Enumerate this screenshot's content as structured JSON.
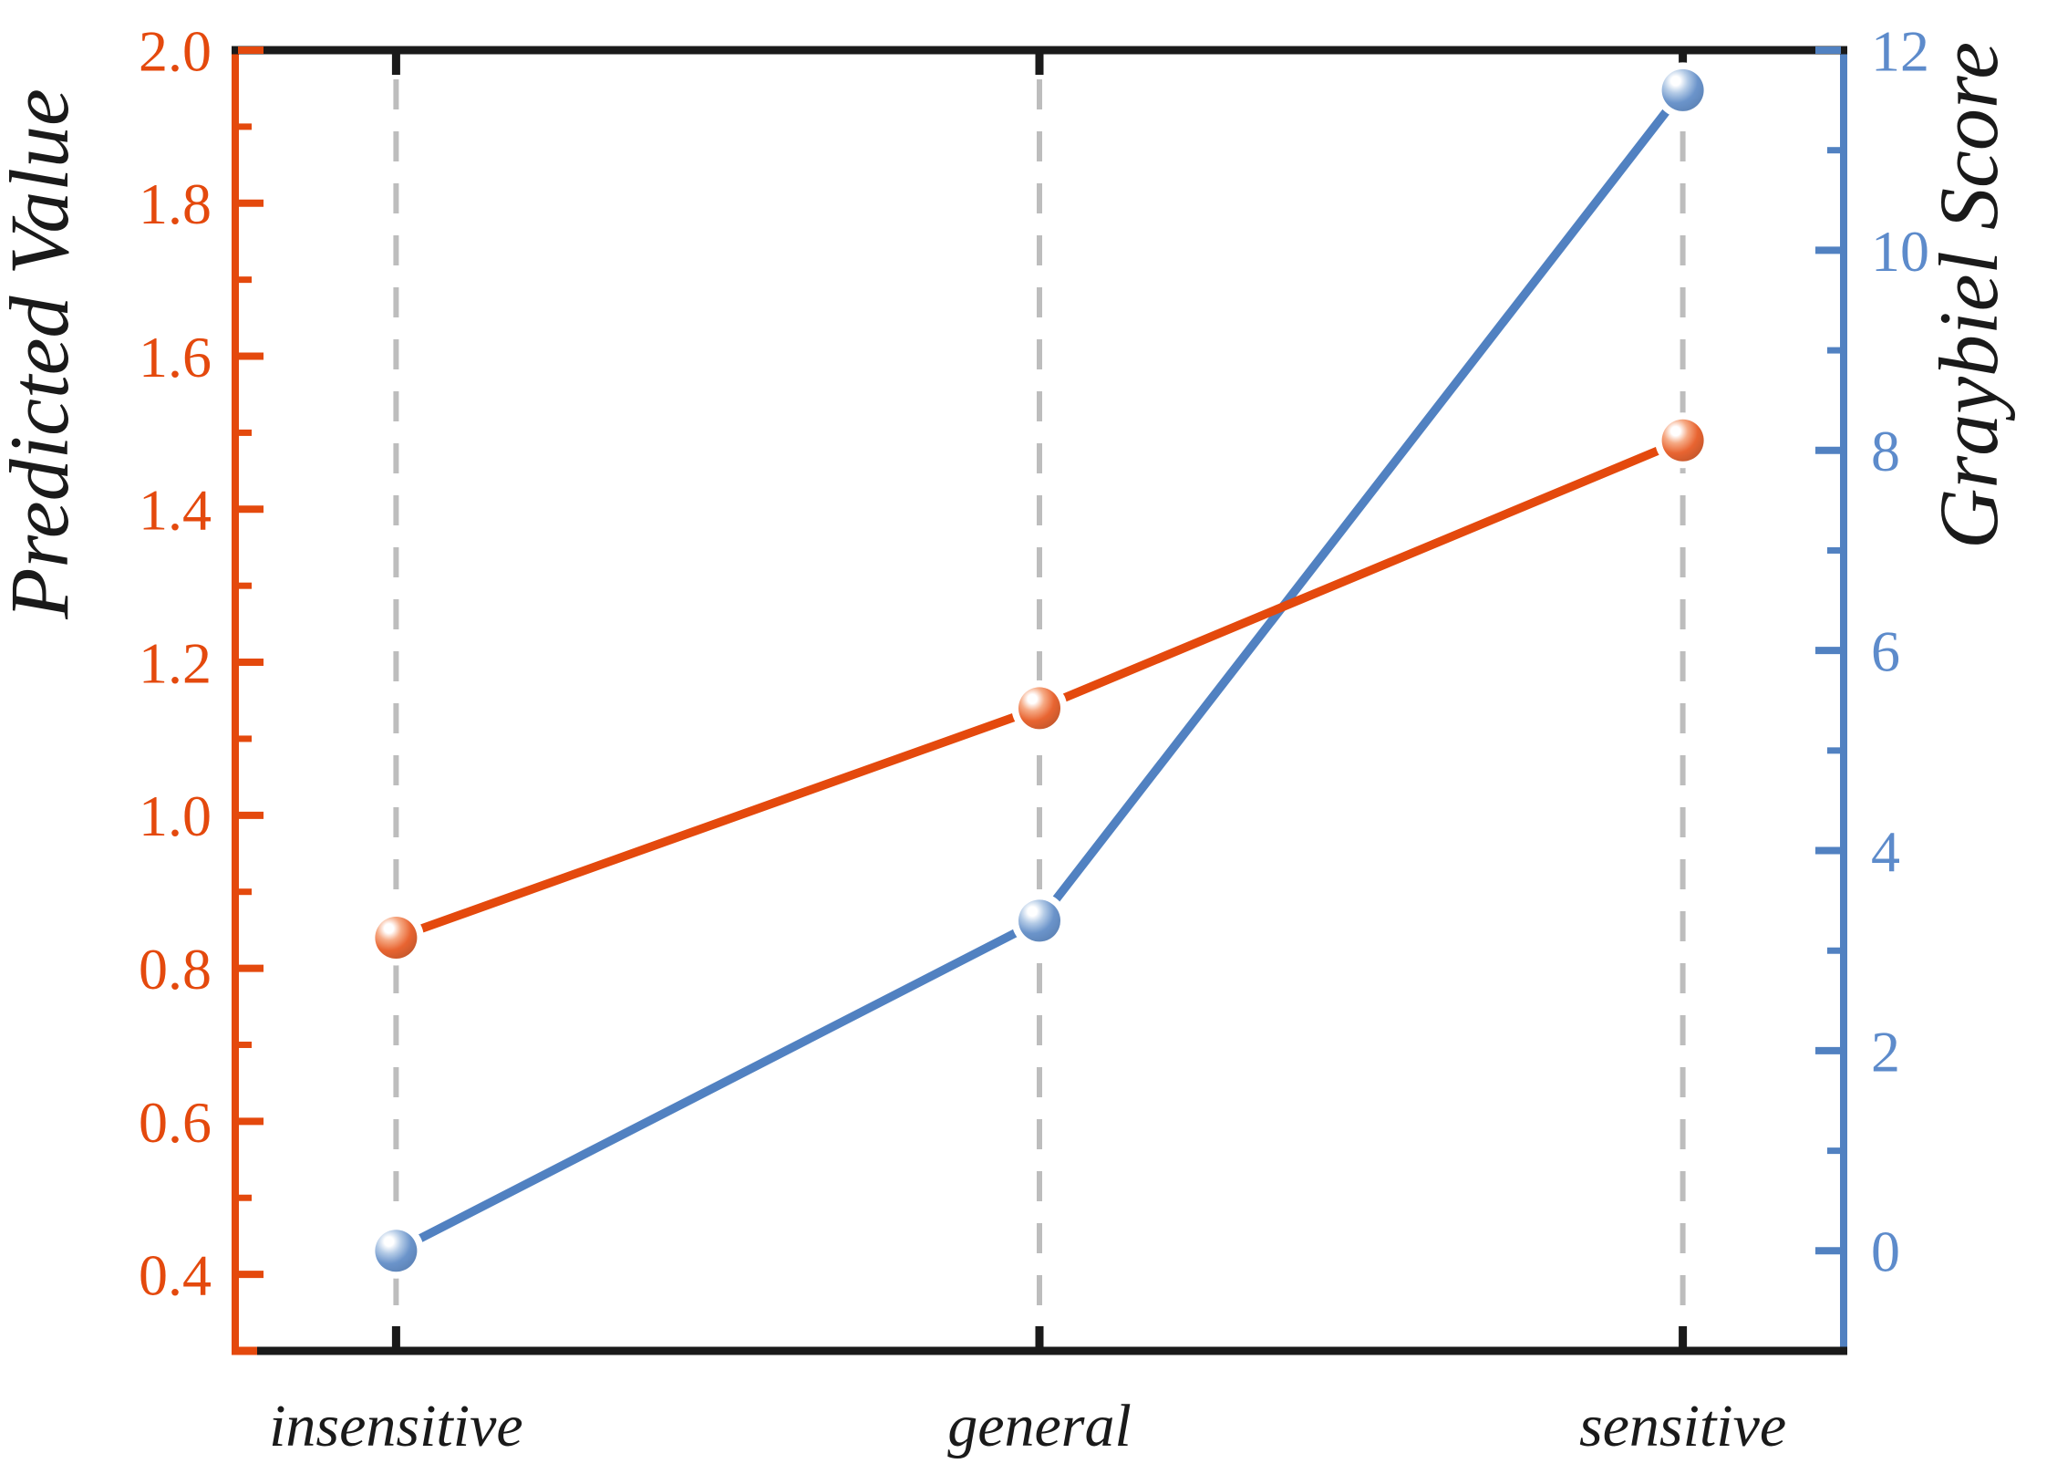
{
  "chart_data": {
    "type": "line",
    "title": "",
    "legend": "none",
    "background": "#FFFFFF",
    "frame_color": "#1A1A1A",
    "categories": [
      "insensitive",
      "general",
      "sensitive"
    ],
    "series": [
      {
        "name": "Predicted Value",
        "axis": "left",
        "values": [
          0.84,
          1.14,
          1.49
        ],
        "color": "#E4490D",
        "color_light": "#F49A6E",
        "color_dark": "#B23605",
        "marker": "sphere"
      },
      {
        "name": "Graybiel Score",
        "axis": "right",
        "values": [
          0.0,
          3.3,
          11.6
        ],
        "color": "#5181C1",
        "color_light": "#A7C2E2",
        "color_dark": "#3C69A5",
        "marker": "sphere"
      }
    ],
    "left_axis": {
      "label": "Predicted Value",
      "min": 0.3,
      "max": 2.0,
      "major_ticks": [
        2.0,
        1.8,
        1.6,
        1.4,
        1.2,
        1.0,
        0.8,
        0.6,
        0.4
      ],
      "major_tick_labels": [
        "2.0",
        "1.8",
        "1.6",
        "1.4",
        "1.2",
        "1.0",
        "0.8",
        "0.6",
        "0.4"
      ],
      "minor_ticks": [
        1.9,
        1.7,
        1.5,
        1.3,
        1.1,
        0.9,
        0.7,
        0.5
      ],
      "color": "#E4490D",
      "tick_label_color": "#E4490D",
      "label_color": "#1A1A1A"
    },
    "right_axis": {
      "label": "Graybiel Score",
      "min": -1,
      "max": 12,
      "major_ticks": [
        12,
        10,
        8,
        6,
        4,
        2,
        0
      ],
      "major_tick_labels": [
        "12",
        "10",
        "8",
        "6",
        "4",
        "2",
        "0"
      ],
      "minor_ticks": [
        11,
        9,
        7,
        5,
        3,
        1
      ],
      "color": "#5181C1",
      "tick_label_color": "#5D8BCB",
      "label_color": "#1A1A1A"
    },
    "x_axis": {
      "tick_color": "#1A1A1A",
      "label_color": "#1A1A1A",
      "gridlines": "dashed-vertical-at-categories",
      "gridline_color": "#BDBDBD"
    }
  }
}
